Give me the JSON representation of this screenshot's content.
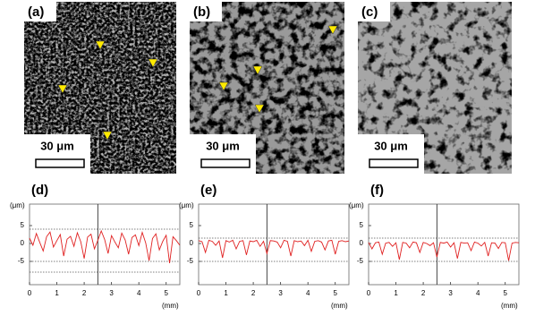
{
  "panels": [
    {
      "label": "(a)",
      "scale_bar": "30 μm"
    },
    {
      "label": "(b)",
      "scale_bar": "30 μm"
    },
    {
      "label": "(c)",
      "scale_bar": "30 μm"
    }
  ],
  "chart_data": [
    {
      "type": "line",
      "title": "(d)",
      "y_label": "(μm)",
      "x_label": "(mm)",
      "x": [
        0,
        0.125,
        0.25,
        0.375,
        0.5,
        0.625,
        0.75,
        0.875,
        1,
        1.125,
        1.25,
        1.375,
        1.5,
        1.625,
        1.75,
        1.875,
        2,
        2.125,
        2.25,
        2.375,
        2.5,
        2.625,
        2.75,
        2.875,
        3,
        3.125,
        3.25,
        3.375,
        3.5,
        3.625,
        3.75,
        3.875,
        4,
        4.125,
        4.25,
        4.375,
        4.5,
        4.625,
        4.75,
        4.875,
        5,
        5.125,
        5.25,
        5.375,
        5.5
      ],
      "series": [
        {
          "color": "#e02020",
          "values": [
            1.5,
            -0.5,
            2.8,
            0.3,
            -2.1,
            1.9,
            3.2,
            -1.0,
            0.8,
            2.5,
            -3.5,
            1.2,
            2.0,
            -0.8,
            3.0,
            0.5,
            -4.2,
            1.8,
            2.6,
            -1.5,
            0.9,
            3.5,
            1.1,
            -2.8,
            2.2,
            0.4,
            -1.2,
            2.9,
            1.0,
            -3.0,
            1.7,
            2.4,
            -0.6,
            3.1,
            0.2,
            -4.8,
            1.4,
            2.7,
            -1.8,
            0.6,
            2.3,
            -5.5,
            1.9,
            0.8,
            -0.5
          ]
        }
      ],
      "xlim": [
        0,
        5.5
      ],
      "ylim": [
        -11.5,
        11
      ],
      "xticks": [
        0,
        1,
        2,
        3,
        4,
        5
      ],
      "yticks": [
        -5,
        0,
        5
      ],
      "reference_lines": [
        4,
        -5,
        -8
      ],
      "vertical_line": 2.5
    },
    {
      "type": "line",
      "title": "(e)",
      "y_label": "(μm)",
      "x_label": "(mm)",
      "x": [
        0,
        0.125,
        0.25,
        0.375,
        0.5,
        0.625,
        0.75,
        0.875,
        1,
        1.125,
        1.25,
        1.375,
        1.5,
        1.625,
        1.75,
        1.875,
        2,
        2.125,
        2.25,
        2.375,
        2.5,
        2.625,
        2.75,
        2.875,
        3,
        3.125,
        3.25,
        3.375,
        3.5,
        3.625,
        3.75,
        3.875,
        4,
        4.125,
        4.25,
        4.375,
        4.5,
        4.625,
        4.75,
        4.875,
        5,
        5.125,
        5.25,
        5.375,
        5.5
      ],
      "series": [
        {
          "color": "#e02020",
          "values": [
            0.8,
            0.5,
            -2.5,
            0.9,
            0.6,
            -0.5,
            0.7,
            -4.0,
            0.8,
            0.4,
            0.9,
            -1.5,
            0.6,
            0.8,
            -3.2,
            0.7,
            0.5,
            0.9,
            -0.8,
            0.6,
            -2.8,
            0.8,
            0.7,
            0.4,
            -1.2,
            0.9,
            0.6,
            -3.5,
            0.8,
            0.5,
            0.7,
            -0.6,
            0.9,
            -2.2,
            0.6,
            0.8,
            0.4,
            -1.8,
            0.7,
            0.9,
            -3.0,
            0.6,
            0.8,
            0.5,
            0.7
          ]
        }
      ],
      "xlim": [
        0,
        5.5
      ],
      "ylim": [
        -11.5,
        11
      ],
      "xticks": [
        0,
        1,
        2,
        3,
        4,
        5
      ],
      "yticks": [
        -5,
        0,
        5
      ],
      "reference_lines": [
        1.5,
        -5
      ],
      "vertical_line": 2.5
    },
    {
      "type": "line",
      "title": "(f)",
      "y_label": "(μm)",
      "x_label": "(mm)",
      "x": [
        0,
        0.125,
        0.25,
        0.375,
        0.5,
        0.625,
        0.75,
        0.875,
        1,
        1.125,
        1.25,
        1.375,
        1.5,
        1.625,
        1.75,
        1.875,
        2,
        2.125,
        2.25,
        2.375,
        2.5,
        2.625,
        2.75,
        2.875,
        3,
        3.125,
        3.25,
        3.375,
        3.5,
        3.625,
        3.75,
        3.875,
        4,
        4.125,
        4.25,
        4.375,
        4.5,
        4.625,
        4.75,
        4.875,
        5,
        5.125,
        5.25,
        5.375,
        5.5
      ],
      "series": [
        {
          "color": "#e02020",
          "values": [
            0.3,
            -1.5,
            0.2,
            0.4,
            -3.0,
            0.1,
            0.3,
            -0.8,
            0.2,
            -4.5,
            0.3,
            0.1,
            -1.2,
            0.4,
            0.2,
            -2.5,
            0.3,
            0.0,
            -0.6,
            0.2,
            -3.8,
            0.3,
            0.1,
            0.4,
            -1.0,
            0.2,
            -4.2,
            0.3,
            0.1,
            0.2,
            -2.0,
            0.4,
            0.1,
            -0.7,
            0.3,
            -3.5,
            0.2,
            0.1,
            -1.4,
            0.3,
            0.2,
            -4.8,
            0.1,
            0.3,
            0.2
          ]
        }
      ],
      "xlim": [
        0,
        5.5
      ],
      "ylim": [
        -11.5,
        11
      ],
      "xticks": [
        0,
        1,
        2,
        3,
        4,
        5
      ],
      "yticks": [
        -5,
        0,
        5
      ],
      "reference_lines": [
        1.5,
        -5
      ],
      "vertical_line": 2.5
    }
  ]
}
